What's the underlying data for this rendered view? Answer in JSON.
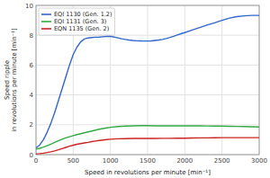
{
  "chart_data": {
    "type": "line",
    "xlabel": "Speed in revolutions per minute [min⁻¹]",
    "ylabel": "Speed ripple\nin revolutions per minute [min⁻¹]",
    "xlim": [
      0,
      3000
    ],
    "ylim": [
      0,
      10
    ],
    "xticks": [
      0,
      500,
      1000,
      1500,
      2000,
      2500,
      3000
    ],
    "yticks": [
      0,
      2,
      4,
      6,
      8,
      10
    ],
    "grid": true,
    "legend": "upper left",
    "series": [
      {
        "name": "EQI 1130 (Gen. 1.2)",
        "color": "#3366CC",
        "x": [
          0,
          50,
          100,
          150,
          200,
          250,
          300,
          350,
          400,
          450,
          500,
          550,
          600,
          650,
          700,
          750,
          800,
          850,
          900,
          950,
          1000,
          1050,
          1100,
          1150,
          1200,
          1250,
          1300,
          1350,
          1400,
          1450,
          1500,
          1550,
          1600,
          1650,
          1700,
          1750,
          1800,
          1850,
          1900,
          1950,
          2000,
          2100,
          2200,
          2300,
          2400,
          2500,
          2600,
          2700,
          2800,
          2900,
          3000
        ],
        "values": [
          0.45,
          0.65,
          1.0,
          1.5,
          2.1,
          2.8,
          3.6,
          4.4,
          5.2,
          6.0,
          6.7,
          7.2,
          7.55,
          7.75,
          7.82,
          7.85,
          7.87,
          7.88,
          7.9,
          7.92,
          7.93,
          7.88,
          7.82,
          7.76,
          7.72,
          7.68,
          7.65,
          7.63,
          7.62,
          7.61,
          7.61,
          7.62,
          7.65,
          7.68,
          7.72,
          7.78,
          7.85,
          7.93,
          8.02,
          8.1,
          8.18,
          8.35,
          8.52,
          8.68,
          8.83,
          9.0,
          9.15,
          9.25,
          9.3,
          9.33,
          9.33
        ]
      },
      {
        "name": "EQI 1131 (Gen. 3)",
        "color": "#33AA44",
        "x": [
          0,
          50,
          100,
          150,
          200,
          250,
          300,
          350,
          400,
          450,
          500,
          550,
          600,
          650,
          700,
          750,
          800,
          850,
          900,
          950,
          1000,
          1100,
          1200,
          1300,
          1400,
          1500,
          1600,
          1700,
          1800,
          1900,
          2000,
          2100,
          2200,
          2300,
          2400,
          2500,
          2600,
          2700,
          2800,
          2900,
          3000
        ],
        "values": [
          0.38,
          0.42,
          0.5,
          0.6,
          0.7,
          0.82,
          0.93,
          1.03,
          1.12,
          1.2,
          1.27,
          1.34,
          1.4,
          1.46,
          1.52,
          1.58,
          1.64,
          1.7,
          1.75,
          1.79,
          1.83,
          1.88,
          1.91,
          1.93,
          1.94,
          1.94,
          1.93,
          1.93,
          1.93,
          1.93,
          1.93,
          1.93,
          1.93,
          1.92,
          1.91,
          1.91,
          1.9,
          1.89,
          1.88,
          1.87,
          1.85
        ]
      },
      {
        "name": "EQN 1135 (Gen. 2)",
        "color": "#CC2222",
        "x": [
          0,
          50,
          100,
          150,
          200,
          250,
          300,
          350,
          400,
          450,
          500,
          550,
          600,
          650,
          700,
          750,
          800,
          850,
          900,
          950,
          1000,
          1100,
          1200,
          1300,
          1400,
          1500,
          1600,
          1700,
          1800,
          1900,
          2000,
          2100,
          2200,
          2300,
          2400,
          2500,
          2600,
          2700,
          2800,
          2900,
          3000
        ],
        "values": [
          0.05,
          0.07,
          0.1,
          0.14,
          0.19,
          0.25,
          0.32,
          0.4,
          0.48,
          0.56,
          0.63,
          0.69,
          0.74,
          0.78,
          0.82,
          0.87,
          0.91,
          0.95,
          0.98,
          1.01,
          1.03,
          1.06,
          1.07,
          1.08,
          1.08,
          1.08,
          1.08,
          1.09,
          1.09,
          1.1,
          1.1,
          1.11,
          1.12,
          1.12,
          1.13,
          1.14,
          1.14,
          1.14,
          1.14,
          1.14,
          1.14
        ]
      }
    ]
  }
}
